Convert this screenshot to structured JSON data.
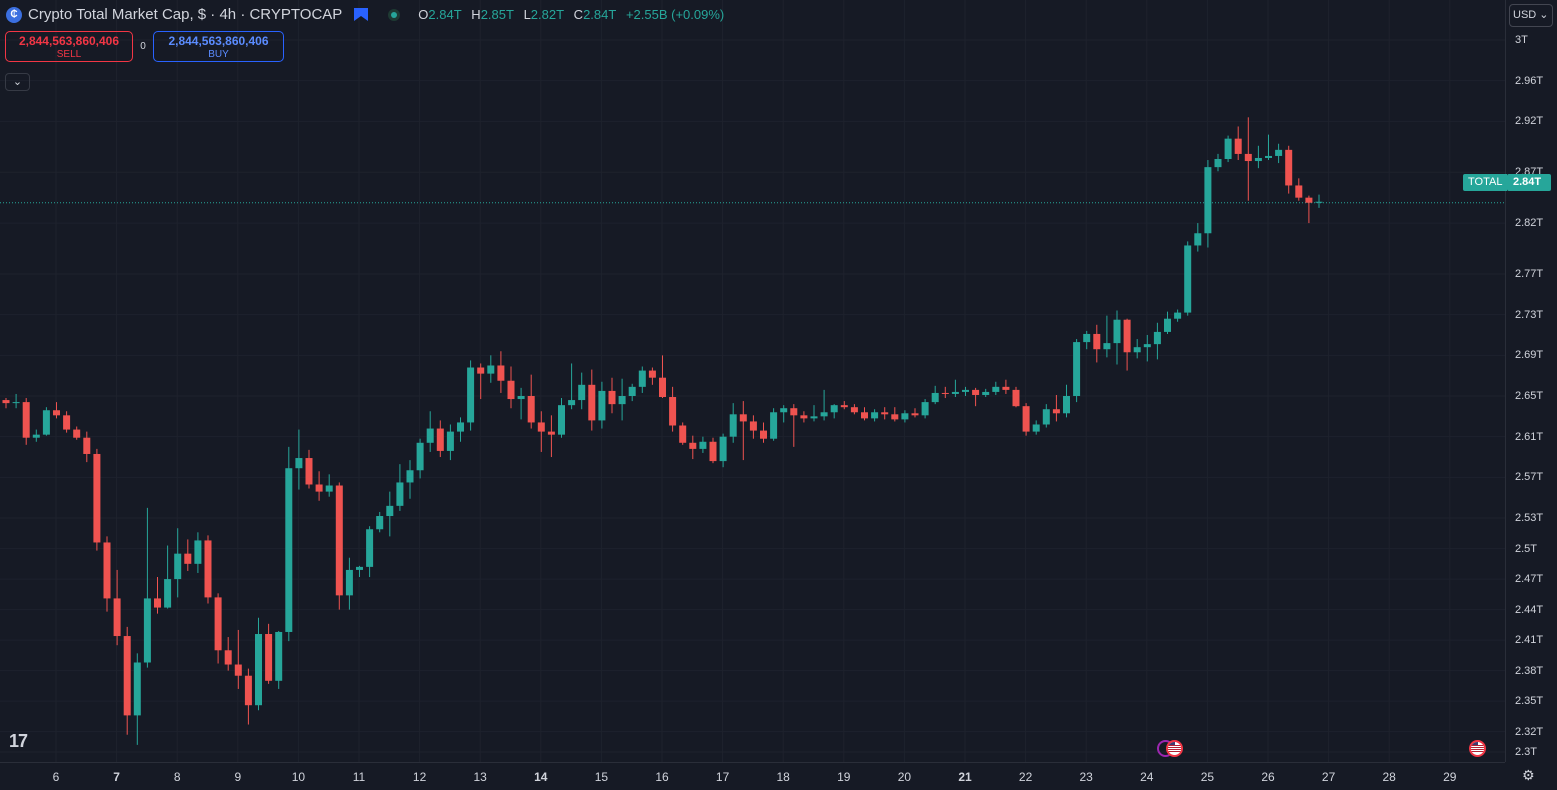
{
  "header": {
    "symbol_icon": "crypto-cap-icon",
    "title": "Crypto Total Market Cap, $ · 4h · CRYPTOCAP",
    "flag_icon": "flag-icon",
    "status_icon": "market-status-dot",
    "ohlc": {
      "o_label": "O",
      "o": "2.84T",
      "h_label": "H",
      "h": "2.85T",
      "l_label": "L",
      "l": "2.82T",
      "c_label": "C",
      "c": "2.84T",
      "change": "+2.55B (+0.09%)"
    }
  },
  "trade": {
    "sell_price": "2,844,563,860,406",
    "sell_label": "SELL",
    "spread": "0",
    "buy_price": "2,844,563,860,406",
    "buy_label": "BUY"
  },
  "collapse_icon": "chevron-down-icon",
  "logo_text": "17",
  "currency": "USD ⌄",
  "price_tag": {
    "name": "TOTAL",
    "price": "2.84T"
  },
  "settings_icon": "gear-icon",
  "colors": {
    "up": "#26a69a",
    "down": "#ef5350",
    "background": "#161a25",
    "grid": "#1e222d",
    "event": "#f23645"
  },
  "chart_data": {
    "type": "candlestick",
    "title": "Crypto Total Market Cap, $ · 4h · CRYPTOCAP",
    "yscale": "linear",
    "ylim": [
      2.285,
      3.025
    ],
    "y_unit": "T",
    "y_ticks": [
      "3T",
      "2.96T",
      "2.92T",
      "2.87T",
      "2.82T",
      "2.77T",
      "2.73T",
      "2.69T",
      "2.65T",
      "2.61T",
      "2.57T",
      "2.53T",
      "2.5T",
      "2.47T",
      "2.44T",
      "2.41T",
      "2.38T",
      "2.35T",
      "2.32T",
      "2.3T"
    ],
    "x_ticks": [
      {
        "label": "6",
        "day": 6
      },
      {
        "label": "7",
        "day": 7,
        "bold": true
      },
      {
        "label": "8",
        "day": 8
      },
      {
        "label": "9",
        "day": 9
      },
      {
        "label": "10",
        "day": 10
      },
      {
        "label": "11",
        "day": 11
      },
      {
        "label": "12",
        "day": 12
      },
      {
        "label": "13",
        "day": 13
      },
      {
        "label": "14",
        "day": 14,
        "bold": true
      },
      {
        "label": "15",
        "day": 15
      },
      {
        "label": "16",
        "day": 16
      },
      {
        "label": "17",
        "day": 17
      },
      {
        "label": "18",
        "day": 18
      },
      {
        "label": "19",
        "day": 19
      },
      {
        "label": "20",
        "day": 20
      },
      {
        "label": "21",
        "day": 21,
        "bold": true
      },
      {
        "label": "22",
        "day": 22
      },
      {
        "label": "23",
        "day": 23
      },
      {
        "label": "24",
        "day": 24
      },
      {
        "label": "25",
        "day": 25
      },
      {
        "label": "26",
        "day": 26
      },
      {
        "label": "27",
        "day": 27
      },
      {
        "label": "28",
        "day": 28
      },
      {
        "label": "29",
        "day": 29
      }
    ],
    "last_price": 2.84,
    "ohlc": [
      [
        2.646,
        2.648,
        2.638,
        2.643
      ],
      [
        2.643,
        2.652,
        2.638,
        2.644
      ],
      [
        2.644,
        2.648,
        2.602,
        2.609
      ],
      [
        2.609,
        2.617,
        2.605,
        2.612
      ],
      [
        2.612,
        2.639,
        2.611,
        2.636
      ],
      [
        2.636,
        2.644,
        2.628,
        2.631
      ],
      [
        2.631,
        2.635,
        2.614,
        2.617
      ],
      [
        2.617,
        2.62,
        2.607,
        2.609
      ],
      [
        2.609,
        2.615,
        2.585,
        2.593
      ],
      [
        2.593,
        2.598,
        2.498,
        2.506
      ],
      [
        2.506,
        2.512,
        2.438,
        2.451
      ],
      [
        2.451,
        2.479,
        2.405,
        2.414
      ],
      [
        2.414,
        2.423,
        2.317,
        2.336
      ],
      [
        2.336,
        2.397,
        2.307,
        2.388
      ],
      [
        2.388,
        2.54,
        2.383,
        2.451
      ],
      [
        2.451,
        2.472,
        2.436,
        2.442
      ],
      [
        2.442,
        2.503,
        2.441,
        2.47
      ],
      [
        2.47,
        2.52,
        2.452,
        2.495
      ],
      [
        2.495,
        2.509,
        2.478,
        2.485
      ],
      [
        2.485,
        2.516,
        2.476,
        2.508
      ],
      [
        2.508,
        2.513,
        2.446,
        2.452
      ],
      [
        2.452,
        2.456,
        2.387,
        2.4
      ],
      [
        2.4,
        2.413,
        2.38,
        2.386
      ],
      [
        2.386,
        2.42,
        2.362,
        2.375
      ],
      [
        2.375,
        2.382,
        2.327,
        2.346
      ],
      [
        2.346,
        2.432,
        2.341,
        2.416
      ],
      [
        2.416,
        2.426,
        2.367,
        2.37
      ],
      [
        2.37,
        2.419,
        2.362,
        2.418
      ],
      [
        2.418,
        2.6,
        2.409,
        2.579
      ],
      [
        2.579,
        2.617,
        2.558,
        2.589
      ],
      [
        2.589,
        2.597,
        2.559,
        2.563
      ],
      [
        2.563,
        2.576,
        2.547,
        2.556
      ],
      [
        2.556,
        2.573,
        2.551,
        2.562
      ],
      [
        2.562,
        2.565,
        2.44,
        2.454
      ],
      [
        2.454,
        2.491,
        2.44,
        2.479
      ],
      [
        2.479,
        2.483,
        2.472,
        2.482
      ],
      [
        2.482,
        2.522,
        2.472,
        2.519
      ],
      [
        2.519,
        2.536,
        2.516,
        2.532
      ],
      [
        2.532,
        2.556,
        2.512,
        2.542
      ],
      [
        2.542,
        2.583,
        2.537,
        2.565
      ],
      [
        2.565,
        2.587,
        2.549,
        2.577
      ],
      [
        2.577,
        2.608,
        2.569,
        2.604
      ],
      [
        2.604,
        2.635,
        2.595,
        2.618
      ],
      [
        2.618,
        2.626,
        2.59,
        2.596
      ],
      [
        2.596,
        2.622,
        2.587,
        2.615
      ],
      [
        2.615,
        2.629,
        2.605,
        2.624
      ],
      [
        2.624,
        2.685,
        2.616,
        2.678
      ],
      [
        2.678,
        2.682,
        2.647,
        2.672
      ],
      [
        2.672,
        2.69,
        2.663,
        2.68
      ],
      [
        2.68,
        2.694,
        2.653,
        2.665
      ],
      [
        2.665,
        2.679,
        2.638,
        2.647
      ],
      [
        2.647,
        2.658,
        2.627,
        2.65
      ],
      [
        2.65,
        2.671,
        2.618,
        2.624
      ],
      [
        2.624,
        2.635,
        2.595,
        2.615
      ],
      [
        2.615,
        2.631,
        2.59,
        2.612
      ],
      [
        2.612,
        2.648,
        2.609,
        2.641
      ],
      [
        2.641,
        2.682,
        2.637,
        2.646
      ],
      [
        2.646,
        2.673,
        2.637,
        2.661
      ],
      [
        2.661,
        2.676,
        2.616,
        2.626
      ],
      [
        2.626,
        2.664,
        2.618,
        2.655
      ],
      [
        2.655,
        2.668,
        2.633,
        2.642
      ],
      [
        2.642,
        2.667,
        2.626,
        2.65
      ],
      [
        2.65,
        2.662,
        2.645,
        2.659
      ],
      [
        2.659,
        2.679,
        2.653,
        2.675
      ],
      [
        2.675,
        2.678,
        2.661,
        2.668
      ],
      [
        2.668,
        2.69,
        2.648,
        2.649
      ],
      [
        2.649,
        2.659,
        2.615,
        2.621
      ],
      [
        2.621,
        2.624,
        2.602,
        2.604
      ],
      [
        2.604,
        2.611,
        2.588,
        2.598
      ],
      [
        2.598,
        2.61,
        2.594,
        2.605
      ],
      [
        2.605,
        2.609,
        2.584,
        2.586
      ],
      [
        2.586,
        2.613,
        2.58,
        2.61
      ],
      [
        2.61,
        2.643,
        2.604,
        2.632
      ],
      [
        2.632,
        2.645,
        2.587,
        2.625
      ],
      [
        2.625,
        2.631,
        2.608,
        2.616
      ],
      [
        2.616,
        2.624,
        2.604,
        2.608
      ],
      [
        2.608,
        2.638,
        2.606,
        2.634
      ],
      [
        2.634,
        2.641,
        2.624,
        2.638
      ],
      [
        2.638,
        2.642,
        2.6,
        2.631
      ],
      [
        2.631,
        2.635,
        2.624,
        2.628
      ],
      [
        2.628,
        2.641,
        2.625,
        2.63
      ],
      [
        2.63,
        2.656,
        2.626,
        2.634
      ],
      [
        2.634,
        2.642,
        2.628,
        2.641
      ],
      [
        2.641,
        2.645,
        2.637,
        2.639
      ],
      [
        2.639,
        2.642,
        2.632,
        2.634
      ],
      [
        2.634,
        2.639,
        2.626,
        2.628
      ],
      [
        2.628,
        2.637,
        2.625,
        2.634
      ],
      [
        2.634,
        2.639,
        2.627,
        2.632
      ],
      [
        2.632,
        2.639,
        2.625,
        2.627
      ],
      [
        2.627,
        2.636,
        2.624,
        2.633
      ],
      [
        2.633,
        2.638,
        2.629,
        2.631
      ],
      [
        2.631,
        2.647,
        2.628,
        2.644
      ],
      [
        2.644,
        2.66,
        2.642,
        2.653
      ],
      [
        2.653,
        2.659,
        2.648,
        2.652
      ],
      [
        2.652,
        2.666,
        2.649,
        2.654
      ],
      [
        2.654,
        2.659,
        2.65,
        2.656
      ],
      [
        2.656,
        2.658,
        2.64,
        2.651
      ],
      [
        2.651,
        2.657,
        2.649,
        2.654
      ],
      [
        2.654,
        2.664,
        2.651,
        2.659
      ],
      [
        2.659,
        2.666,
        2.652,
        2.656
      ],
      [
        2.656,
        2.659,
        2.639,
        2.64
      ],
      [
        2.64,
        2.643,
        2.611,
        2.615
      ],
      [
        2.615,
        2.626,
        2.612,
        2.622
      ],
      [
        2.622,
        2.642,
        2.619,
        2.637
      ],
      [
        2.637,
        2.651,
        2.625,
        2.633
      ],
      [
        2.633,
        2.661,
        2.629,
        2.65
      ],
      [
        2.65,
        2.706,
        2.644,
        2.703
      ],
      [
        2.703,
        2.714,
        2.696,
        2.711
      ],
      [
        2.711,
        2.72,
        2.683,
        2.696
      ],
      [
        2.696,
        2.729,
        2.688,
        2.702
      ],
      [
        2.702,
        2.734,
        2.681,
        2.725
      ],
      [
        2.725,
        2.726,
        2.675,
        2.693
      ],
      [
        2.693,
        2.706,
        2.687,
        2.698
      ],
      [
        2.698,
        2.71,
        2.684,
        2.701
      ],
      [
        2.701,
        2.722,
        2.686,
        2.713
      ],
      [
        2.713,
        2.733,
        2.711,
        2.726
      ],
      [
        2.726,
        2.735,
        2.723,
        2.732
      ],
      [
        2.732,
        2.802,
        2.729,
        2.798
      ],
      [
        2.798,
        2.82,
        2.792,
        2.81
      ],
      [
        2.81,
        2.882,
        2.796,
        2.875
      ],
      [
        2.875,
        2.888,
        2.871,
        2.883
      ],
      [
        2.883,
        2.906,
        2.88,
        2.903
      ],
      [
        2.903,
        2.915,
        2.882,
        2.888
      ],
      [
        2.888,
        2.924,
        2.842,
        2.881
      ],
      [
        2.881,
        2.896,
        2.874,
        2.884
      ],
      [
        2.884,
        2.907,
        2.882,
        2.886
      ],
      [
        2.886,
        2.898,
        2.879,
        2.892
      ],
      [
        2.892,
        2.896,
        2.849,
        2.857
      ],
      [
        2.857,
        2.864,
        2.842,
        2.845
      ],
      [
        2.845,
        2.847,
        2.82,
        2.84
      ],
      [
        2.84,
        2.848,
        2.835,
        2.841
      ]
    ],
    "events": [
      "us-flag-event-icon",
      "us-flag-event-icon"
    ]
  }
}
